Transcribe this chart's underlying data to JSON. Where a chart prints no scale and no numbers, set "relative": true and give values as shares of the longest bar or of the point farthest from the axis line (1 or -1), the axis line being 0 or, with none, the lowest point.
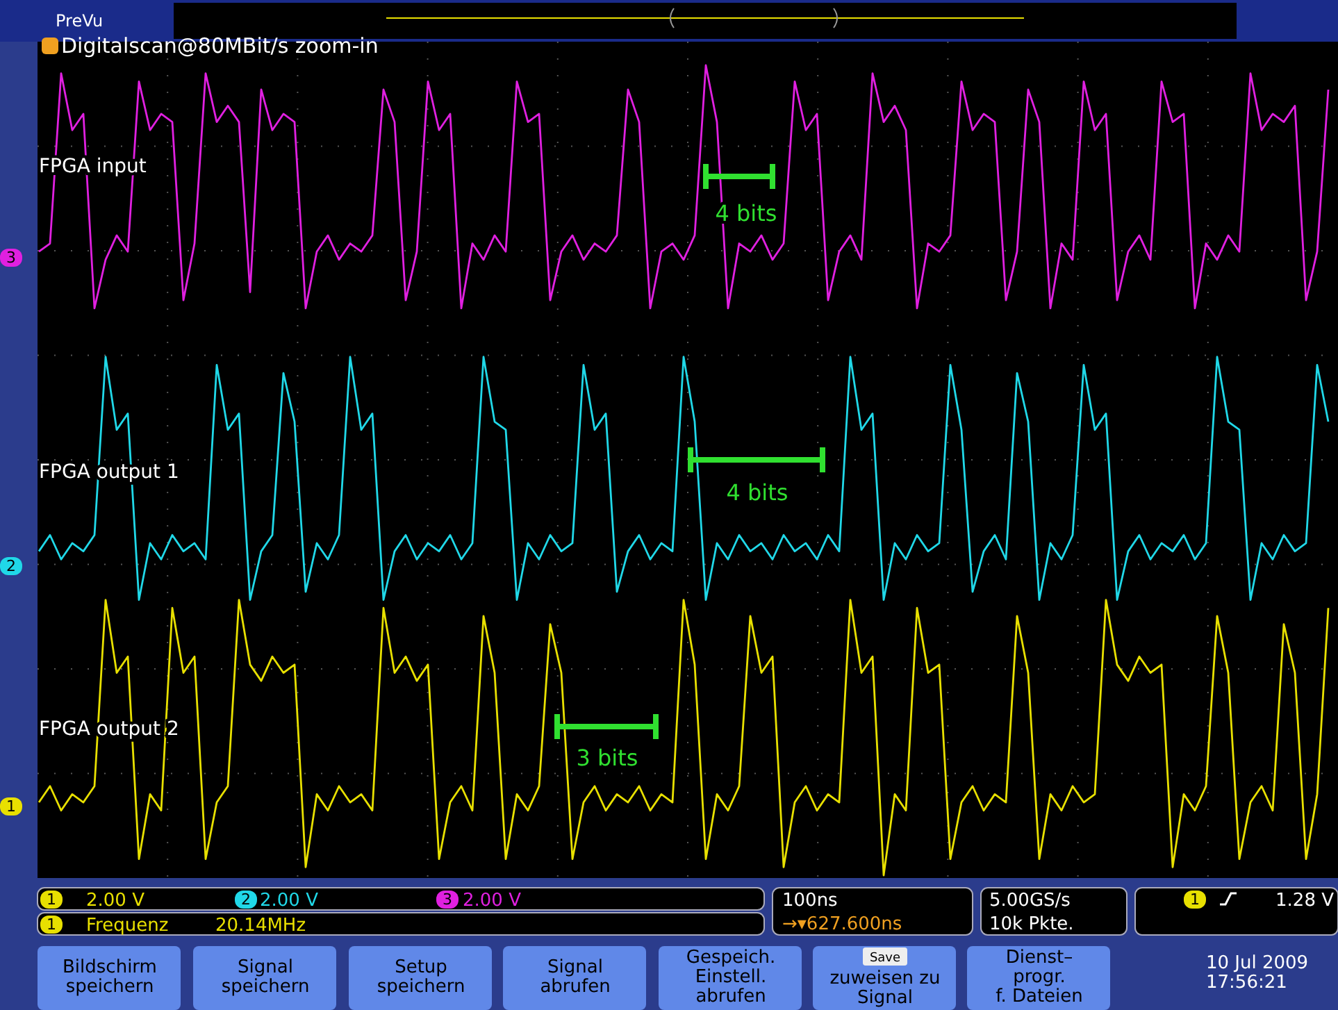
{
  "chart_data": {
    "type": "line",
    "relative": true,
    "grid": true,
    "title": "Digitalscan@80MBit/s zoom-in",
    "categories": [
      null,
      null,
      null,
      null,
      null,
      null,
      null,
      null,
      null,
      null,
      null,
      null,
      null,
      null,
      null,
      null,
      null,
      null,
      null,
      null,
      null,
      null,
      null,
      null,
      null,
      null,
      null,
      null,
      null,
      null,
      null,
      null,
      null,
      null,
      null,
      null,
      null,
      null,
      null,
      null,
      null,
      null,
      null,
      null,
      null,
      null,
      null,
      null,
      null,
      null,
      null,
      null,
      null,
      null,
      null,
      null,
      null,
      null,
      null,
      null,
      null,
      null,
      null,
      null,
      null,
      null,
      null,
      null,
      null,
      null,
      null,
      null,
      null,
      null,
      null,
      null,
      null,
      null,
      null,
      null,
      null,
      null,
      null,
      null,
      null,
      null,
      null,
      null,
      null,
      null,
      null,
      null,
      null,
      null,
      null,
      null,
      null,
      null,
      null,
      null,
      null,
      null,
      null,
      null,
      null,
      null,
      null,
      null,
      null,
      null,
      null,
      null,
      null,
      null,
      null,
      null,
      null
    ],
    "series": [
      {
        "name": "FPGA input",
        "color": "#e020e0",
        "values": [
          0.77,
          0.78,
          0.99,
          0.92,
          0.94,
          0.7,
          0.76,
          0.79,
          0.77,
          0.98,
          0.92,
          0.94,
          0.93,
          0.71,
          0.78,
          0.99,
          0.93,
          0.95,
          0.93,
          0.72,
          0.97,
          0.92,
          0.94,
          0.93,
          0.7,
          0.77,
          0.79,
          0.76,
          0.78,
          0.77,
          0.79,
          0.97,
          0.93,
          0.71,
          0.77,
          0.98,
          0.92,
          0.94,
          0.7,
          0.78,
          0.76,
          0.79,
          0.77,
          0.98,
          0.93,
          0.94,
          0.71,
          0.77,
          0.79,
          0.76,
          0.78,
          0.77,
          0.79,
          0.97,
          0.93,
          0.7,
          0.77,
          0.78,
          0.76,
          0.79,
          1.0,
          0.93,
          0.7,
          0.78,
          0.77,
          0.79,
          0.76,
          0.78,
          0.98,
          0.92,
          0.94,
          0.71,
          0.77,
          0.79,
          0.76,
          0.99,
          0.93,
          0.95,
          0.92,
          0.7,
          0.78,
          0.77,
          0.79,
          0.98,
          0.92,
          0.94,
          0.93,
          0.71,
          0.77,
          0.97,
          0.93,
          0.7,
          0.78,
          0.76,
          0.98,
          0.92,
          0.94,
          0.71,
          0.77,
          0.79,
          0.76,
          0.98,
          0.93,
          0.94,
          0.7,
          0.78,
          0.76,
          0.79,
          0.77,
          0.99,
          0.92,
          0.94,
          0.93,
          0.95,
          0.71,
          0.77,
          0.97
        ]
      },
      {
        "name": "FPGA output 1",
        "color": "#20d8e8",
        "values": [
          0.4,
          0.42,
          0.39,
          0.41,
          0.4,
          0.42,
          0.64,
          0.55,
          0.57,
          0.34,
          0.41,
          0.39,
          0.42,
          0.4,
          0.41,
          0.39,
          0.63,
          0.55,
          0.57,
          0.34,
          0.4,
          0.42,
          0.62,
          0.56,
          0.35,
          0.41,
          0.39,
          0.42,
          0.64,
          0.55,
          0.57,
          0.34,
          0.4,
          0.42,
          0.39,
          0.41,
          0.4,
          0.42,
          0.39,
          0.41,
          0.64,
          0.56,
          0.55,
          0.34,
          0.41,
          0.39,
          0.42,
          0.4,
          0.41,
          0.63,
          0.55,
          0.57,
          0.35,
          0.4,
          0.42,
          0.39,
          0.41,
          0.4,
          0.64,
          0.56,
          0.34,
          0.41,
          0.39,
          0.42,
          0.4,
          0.41,
          0.39,
          0.42,
          0.4,
          0.41,
          0.39,
          0.42,
          0.4,
          0.64,
          0.55,
          0.57,
          0.34,
          0.41,
          0.39,
          0.42,
          0.4,
          0.41,
          0.63,
          0.55,
          0.35,
          0.4,
          0.42,
          0.39,
          0.62,
          0.56,
          0.34,
          0.41,
          0.39,
          0.42,
          0.63,
          0.55,
          0.57,
          0.34,
          0.4,
          0.42,
          0.39,
          0.41,
          0.4,
          0.42,
          0.39,
          0.41,
          0.64,
          0.56,
          0.55,
          0.34,
          0.41,
          0.39,
          0.42,
          0.4,
          0.41,
          0.63,
          0.56
        ]
      },
      {
        "name": "FPGA output 2",
        "color": "#e8e000",
        "values": [
          0.09,
          0.11,
          0.08,
          0.1,
          0.09,
          0.11,
          0.34,
          0.25,
          0.27,
          0.02,
          0.1,
          0.08,
          0.33,
          0.25,
          0.27,
          0.02,
          0.09,
          0.11,
          0.34,
          0.26,
          0.24,
          0.27,
          0.25,
          0.26,
          0.01,
          0.1,
          0.08,
          0.11,
          0.09,
          0.1,
          0.08,
          0.33,
          0.25,
          0.27,
          0.24,
          0.26,
          0.02,
          0.09,
          0.11,
          0.08,
          0.32,
          0.25,
          0.02,
          0.1,
          0.08,
          0.11,
          0.31,
          0.25,
          0.02,
          0.09,
          0.11,
          0.08,
          0.1,
          0.09,
          0.11,
          0.08,
          0.1,
          0.09,
          0.34,
          0.26,
          0.02,
          0.1,
          0.08,
          0.11,
          0.32,
          0.25,
          0.27,
          0.01,
          0.09,
          0.11,
          0.08,
          0.1,
          0.09,
          0.34,
          0.25,
          0.27,
          0.0,
          0.1,
          0.08,
          0.33,
          0.25,
          0.26,
          0.02,
          0.09,
          0.11,
          0.08,
          0.1,
          0.09,
          0.32,
          0.25,
          0.02,
          0.1,
          0.08,
          0.11,
          0.09,
          0.1,
          0.34,
          0.26,
          0.24,
          0.27,
          0.25,
          0.26,
          0.01,
          0.1,
          0.08,
          0.11,
          0.32,
          0.25,
          0.02,
          0.09,
          0.11,
          0.08,
          0.31,
          0.25,
          0.02,
          0.1,
          0.33
        ]
      }
    ],
    "annotations": [
      "4 bits",
      "4 bits",
      "3 bits",
      "PreVu",
      "2.00 V",
      "2.00 V",
      "2.00 V",
      "Frequenz",
      "20.14MHz",
      "100ns",
      "→▾627.600ns",
      "5.00GS/s",
      "10k Pkte.",
      "1.28 V",
      "Bildschirm\nspeichern",
      "Signal\nspeichern",
      "Setup\nspeichern",
      "Signal\nabrufen",
      "Gespeich.\nEinstell.\nabrufen",
      "Save",
      "zuweisen zu\nSignal",
      "Dienst–\nprogr.\nf. Dateien",
      "10 Jul  2009\n17:56:21",
      "3",
      "2",
      "1",
      "1",
      "2",
      "3",
      "1",
      "1"
    ]
  }
}
